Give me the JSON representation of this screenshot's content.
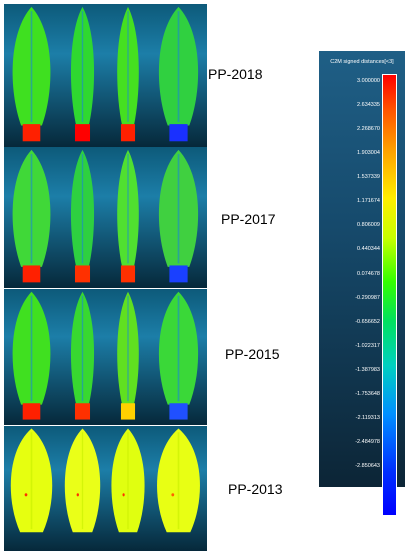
{
  "rows": [
    {
      "label": "PP-2018"
    },
    {
      "label": "PP-2017"
    },
    {
      "label": "PP-2015"
    },
    {
      "label": "PP-2013"
    }
  ],
  "colorbar": {
    "title": "C2M signed distances[<3]",
    "ticks": [
      "3.000000",
      "2.634335",
      "2.268670",
      "1.903004",
      "1.537339",
      "1.171674",
      "0.806009",
      "0.440344",
      "0.074678",
      "-0.290987",
      "-0.656652",
      "-1.022317",
      "-1.387983",
      "-1.753648",
      "-2.119313",
      "-2.484978",
      "-2.850643"
    ],
    "colors": [
      "#ff0000",
      "#ff8000",
      "#ffff00",
      "#00ff00",
      "#00e0e0",
      "#0060ff",
      "#0000ff"
    ]
  }
}
